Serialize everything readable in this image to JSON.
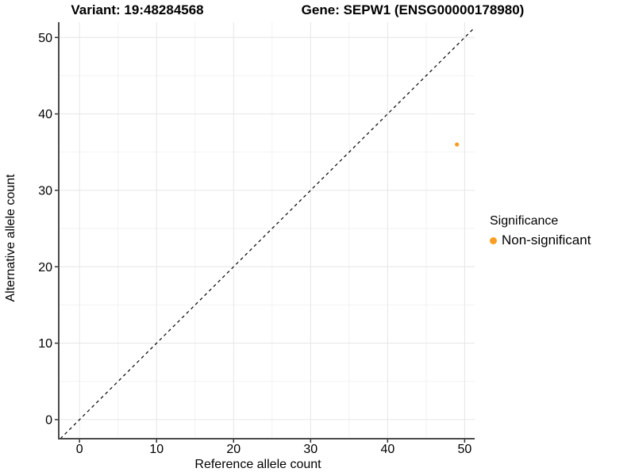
{
  "titles": {
    "variant": "Variant: 19:48284568",
    "gene": "Gene: SEPW1 (ENSG00000178980)"
  },
  "chart_data": {
    "type": "scatter",
    "title_left": "Variant: 19:48284568",
    "title_right": "Gene: SEPW1 (ENSG00000178980)",
    "xlabel": "Reference allele count",
    "ylabel": "Alternative allele count",
    "xlim": [
      -2.7,
      51.3
    ],
    "ylim": [
      -2.5,
      52.0
    ],
    "x_ticks": [
      0,
      10,
      20,
      30,
      40,
      50
    ],
    "y_ticks": [
      0,
      10,
      20,
      30,
      40,
      50
    ],
    "x_minor_ticks": [
      5,
      15,
      25,
      35,
      45
    ],
    "y_minor_ticks": [
      5,
      15,
      25,
      35,
      45
    ],
    "grid": true,
    "legend_position": "right",
    "identity_line": {
      "type": "y=x",
      "style": "dashed",
      "color": "#000000"
    },
    "series": [
      {
        "name": "Non-significant",
        "color": "#FB9E24",
        "points": [
          {
            "x": 49,
            "y": 36
          }
        ]
      }
    ],
    "legend": {
      "title": "Significance",
      "entries": [
        {
          "label": "Non-significant",
          "color": "#FB9E24"
        }
      ]
    }
  },
  "colors": {
    "background": "#ffffff",
    "axis_line": "#4a4a4a",
    "tick_mark": "#333333",
    "grid_major": "#e6e6e6",
    "grid_minor": "#f2f2f2",
    "point_orange": "#FB9E24"
  }
}
